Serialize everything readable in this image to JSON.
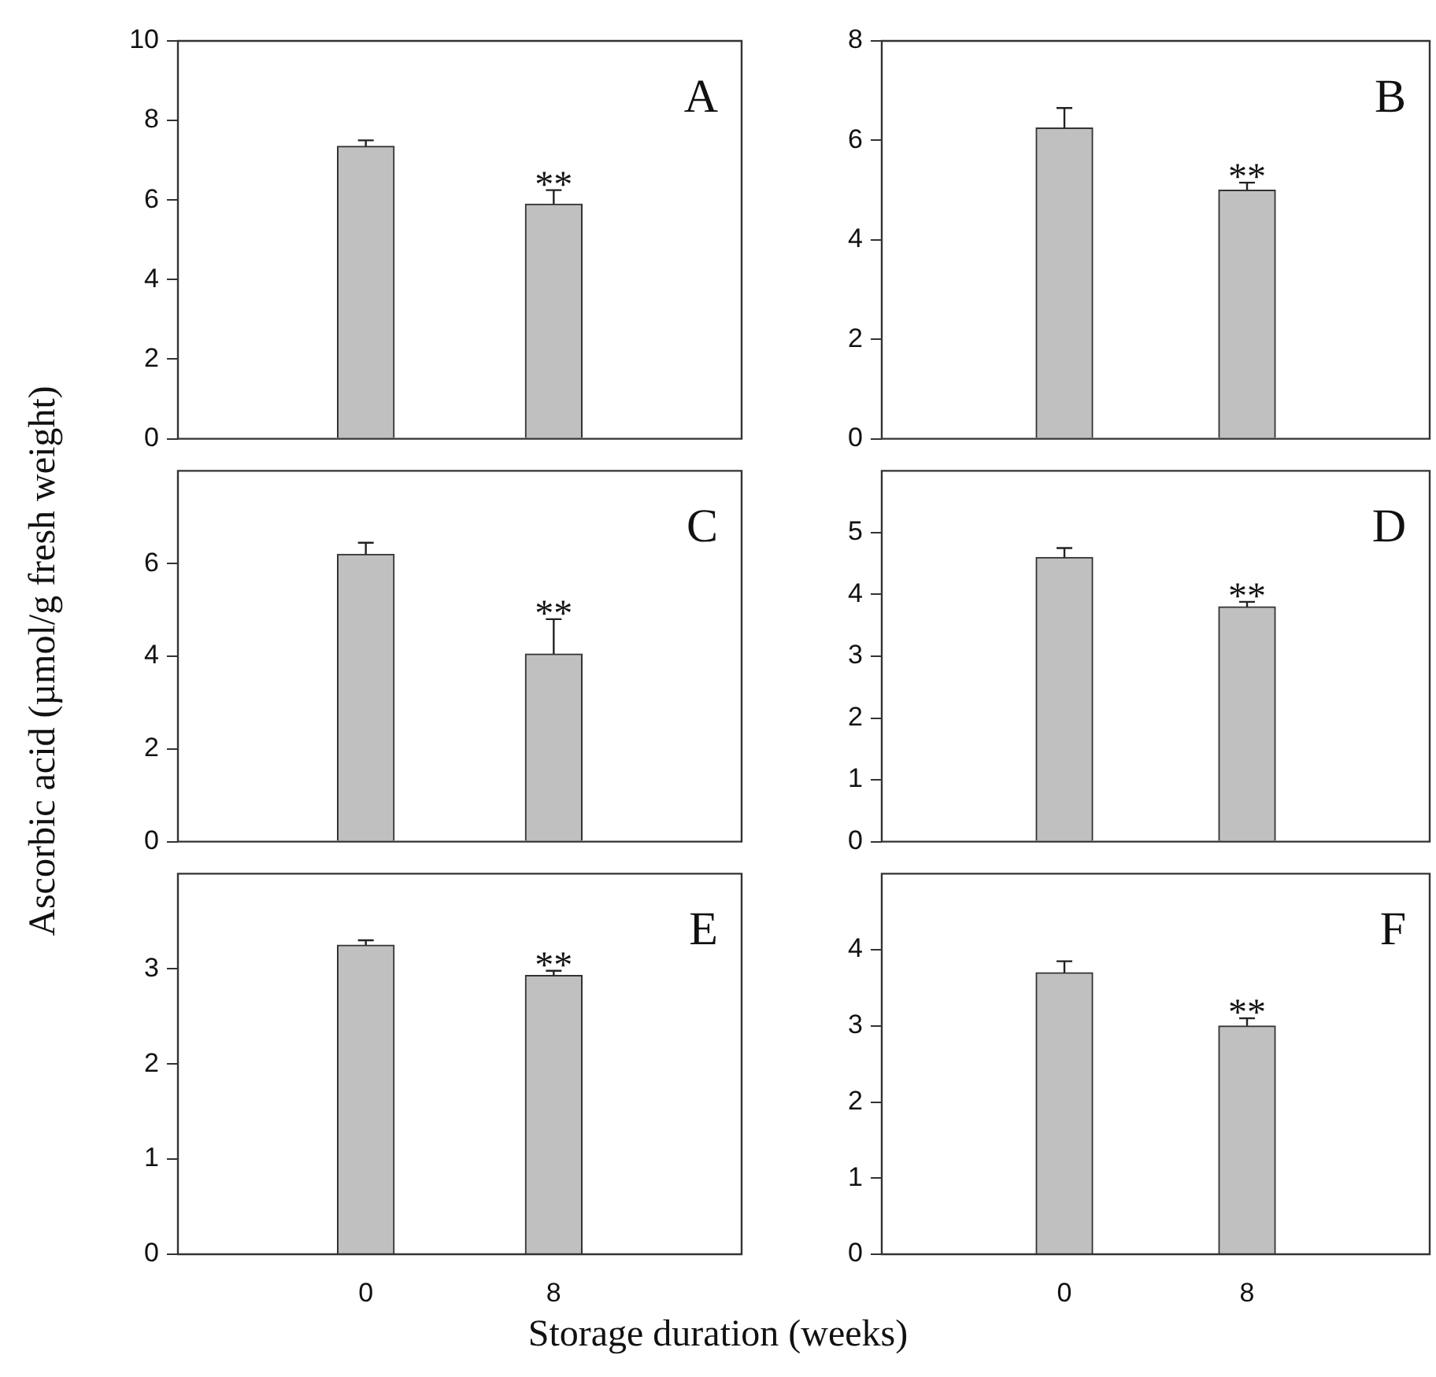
{
  "chart_data": [
    {
      "type": "bar",
      "categories": [
        "0",
        "8"
      ],
      "values": [
        7.35,
        5.9
      ],
      "errors": [
        [
          7.35,
          7.5
        ],
        [
          5.9,
          6.25
        ]
      ],
      "color": "#c0c0c0",
      "ylim": [
        0,
        10
      ],
      "yticks": [
        0,
        2,
        4,
        6,
        8,
        10
      ],
      "tick_labels": "y",
      "ylabel": "Ascorbic acid (µmol/g fresh weight)",
      "annotations": [
        "A",
        "**"
      ]
    },
    {
      "type": "bar",
      "categories": [
        "0",
        "8"
      ],
      "values": [
        6.25,
        5.0
      ],
      "errors": [
        [
          6.25,
          6.65
        ],
        [
          5.0,
          5.15
        ]
      ],
      "color": "#c0c0c0",
      "ylim": [
        0,
        8
      ],
      "yticks": [
        0,
        2,
        4,
        6,
        8
      ],
      "tick_labels": "y",
      "annotations": [
        "B",
        "**"
      ]
    },
    {
      "type": "bar",
      "categories": [
        "0",
        "8"
      ],
      "values": [
        6.2,
        4.05
      ],
      "errors": [
        [
          6.2,
          6.45
        ],
        [
          4.05,
          4.8
        ]
      ],
      "color": "#c0c0c0",
      "ylim": [
        0,
        8
      ],
      "yticks": [
        0,
        2,
        4,
        6
      ],
      "tick_labels": "y",
      "annotations": [
        "C",
        "**"
      ]
    },
    {
      "type": "bar",
      "categories": [
        "0",
        "8"
      ],
      "values": [
        4.6,
        3.8
      ],
      "errors": [
        [
          4.6,
          4.75
        ],
        [
          3.8,
          3.88
        ]
      ],
      "color": "#c0c0c0",
      "ylim": [
        0,
        6
      ],
      "yticks": [
        0,
        1,
        2,
        3,
        4,
        5
      ],
      "tick_labels": "y",
      "annotations": [
        "D",
        "**"
      ]
    },
    {
      "type": "bar",
      "categories": [
        "0",
        "8"
      ],
      "values": [
        3.25,
        2.93
      ],
      "errors": [
        [
          3.25,
          3.3
        ],
        [
          2.93,
          2.98
        ]
      ],
      "color": "#c0c0c0",
      "ylim": [
        0,
        4
      ],
      "yticks": [
        0,
        1,
        2,
        3
      ],
      "xlabel": "Storage duration (weeks)",
      "annotations": [
        "E",
        "**"
      ]
    },
    {
      "type": "bar",
      "categories": [
        "0",
        "8"
      ],
      "values": [
        3.7,
        3.0
      ],
      "errors": [
        [
          3.7,
          3.85
        ],
        [
          3.0,
          3.1
        ]
      ],
      "color": "#c0c0c0",
      "ylim": [
        0,
        5
      ],
      "yticks": [
        0,
        1,
        2,
        3,
        4
      ],
      "annotations": [
        "F",
        "**"
      ]
    }
  ]
}
